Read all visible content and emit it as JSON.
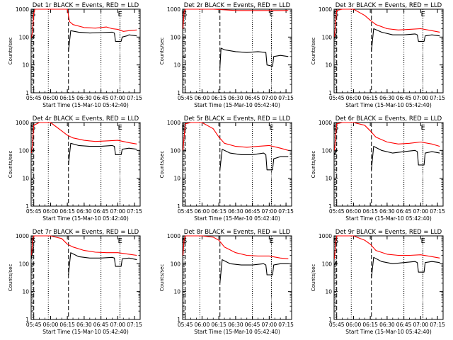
{
  "chart_data": [
    {
      "type": "line",
      "title": "Det 1r BLACK = Events, RED = LLD",
      "ylabel": "Counts/sec",
      "xlabel": "Start Time (15-Mar-10 05:42:40)",
      "x_ticks": [
        "05:45",
        "06:00",
        "06:15",
        "06:30",
        "06:45",
        "07:00",
        "07:15"
      ],
      "y_ticks": [
        "1",
        "10",
        "100",
        "1000"
      ],
      "ylim": [
        1,
        1000
      ],
      "yscale": "log",
      "markers": [
        "E",
        "S",
        "E"
      ],
      "series": [
        {
          "color": "#ff0000",
          "x": [
            "05:43",
            "05:44",
            "05:45",
            "05:46",
            "05:47",
            "05:50",
            "05:55",
            "06:00",
            "06:05",
            "06:10",
            "06:15",
            "06:17",
            "06:20",
            "06:30",
            "06:40",
            "06:50",
            "06:55",
            "07:00",
            "07:05",
            "07:10",
            "07:17"
          ],
          "y": [
            90,
            180,
            700,
            1000,
            1000,
            1000,
            1000,
            1000,
            1000,
            1000,
            1000,
            360,
            280,
            220,
            210,
            230,
            200,
            190,
            160,
            170,
            180
          ]
        },
        {
          "color": "#000000",
          "x": [
            "05:43",
            "05:44",
            "05:45",
            "05:46",
            "06:15",
            "06:16",
            "06:18",
            "06:25",
            "06:35",
            "06:45",
            "06:55",
            "06:57",
            "06:58",
            "07:03",
            "07:04",
            "07:08",
            "07:10",
            "07:17"
          ],
          "y": [
            90,
            100,
            110,
            120,
            null,
            30,
            170,
            150,
            140,
            145,
            150,
            140,
            70,
            70,
            100,
            110,
            120,
            110
          ]
        }
      ]
    },
    {
      "type": "line",
      "title": "Det 2r BLACK = Events, RED = LLD",
      "ylabel": "Counts/sec",
      "xlabel": "Start Time (15-Mar-10 05:42:40)",
      "x_ticks": [
        "05:45",
        "06:00",
        "06:15",
        "06:30",
        "06:45",
        "07:00",
        "07:15"
      ],
      "y_ticks": [
        "1",
        "10",
        "100",
        "1000"
      ],
      "ylim": [
        1,
        1000
      ],
      "yscale": "log",
      "markers": [
        "E",
        "S",
        "E"
      ],
      "series": [
        {
          "color": "#ff0000",
          "x": [
            "05:43",
            "05:44",
            "05:45",
            "06:10",
            "06:30",
            "06:50",
            "07:10",
            "07:17"
          ],
          "y": [
            200,
            800,
            1000,
            1000,
            900,
            900,
            900,
            900
          ]
        },
        {
          "color": "#000000",
          "x": [
            "05:43",
            "05:44",
            "05:45",
            "06:15",
            "06:16",
            "06:17",
            "06:20",
            "06:30",
            "06:40",
            "06:50",
            "06:57",
            "06:58",
            "07:03",
            "07:04",
            "07:10",
            "07:17"
          ],
          "y": [
            20,
            18,
            20,
            null,
            8,
            40,
            35,
            30,
            28,
            30,
            28,
            10,
            9,
            20,
            22,
            20
          ]
        }
      ]
    },
    {
      "type": "line",
      "title": "Det 3r BLACK = Events, RED = LLD",
      "ylabel": "Counts/sec",
      "xlabel": "Start Time (15-Mar-10 05:42:40)",
      "x_ticks": [
        "05:45",
        "06:00",
        "06:15",
        "06:30",
        "06:45",
        "07:00",
        "07:15"
      ],
      "y_ticks": [
        "1",
        "10",
        "100",
        "1000"
      ],
      "ylim": [
        1,
        1000
      ],
      "yscale": "log",
      "markers": [
        "E",
        "S",
        "E"
      ],
      "series": [
        {
          "color": "#ff0000",
          "x": [
            "05:43",
            "05:44",
            "05:45",
            "05:50",
            "06:00",
            "06:10",
            "06:15",
            "06:20",
            "06:30",
            "06:40",
            "06:50",
            "07:00",
            "07:10",
            "07:17"
          ],
          "y": [
            100,
            300,
            900,
            1000,
            1000,
            600,
            400,
            280,
            200,
            180,
            190,
            200,
            170,
            150
          ]
        },
        {
          "color": "#000000",
          "x": [
            "05:43",
            "05:44",
            "05:45",
            "06:15",
            "06:16",
            "06:18",
            "06:25",
            "06:35",
            "06:45",
            "06:55",
            "06:57",
            "06:58",
            "07:03",
            "07:04",
            "07:10",
            "07:17"
          ],
          "y": [
            90,
            120,
            150,
            null,
            30,
            200,
            150,
            120,
            120,
            130,
            120,
            70,
            70,
            110,
            120,
            110
          ]
        }
      ]
    },
    {
      "type": "line",
      "title": "Det 4r BLACK = Events, RED = LLD",
      "ylabel": "Counts/sec",
      "xlabel": "Start Time (15-Mar-10 05:42:40)",
      "x_ticks": [
        "05:45",
        "06:00",
        "06:15",
        "06:30",
        "06:45",
        "07:00",
        "07:15"
      ],
      "y_ticks": [
        "1",
        "10",
        "100",
        "1000"
      ],
      "ylim": [
        1,
        1000
      ],
      "yscale": "log",
      "markers": [
        "E",
        "S",
        "E"
      ],
      "series": [
        {
          "color": "#ff0000",
          "x": [
            "05:43",
            "05:44",
            "05:45",
            "05:50",
            "06:00",
            "06:10",
            "06:15",
            "06:20",
            "06:30",
            "06:40",
            "06:50",
            "07:00",
            "07:10",
            "07:17"
          ],
          "y": [
            80,
            200,
            800,
            1000,
            1000,
            500,
            350,
            280,
            230,
            210,
            220,
            230,
            190,
            170
          ]
        },
        {
          "color": "#000000",
          "x": [
            "05:43",
            "05:44",
            "05:45",
            "06:15",
            "06:16",
            "06:18",
            "06:25",
            "06:35",
            "06:45",
            "06:55",
            "06:57",
            "06:58",
            "07:03",
            "07:04",
            "07:10",
            "07:17"
          ],
          "y": [
            90,
            100,
            110,
            null,
            30,
            180,
            150,
            140,
            140,
            150,
            140,
            70,
            70,
            110,
            120,
            110
          ]
        }
      ]
    },
    {
      "type": "line",
      "title": "Det 5r BLACK = Events, RED = LLD",
      "ylabel": "Counts/sec",
      "xlabel": "Start Time (15-Mar-10 05:42:40)",
      "x_ticks": [
        "05:45",
        "06:00",
        "06:15",
        "06:30",
        "06:45",
        "07:00",
        "07:15"
      ],
      "y_ticks": [
        "1",
        "10",
        "100",
        "1000"
      ],
      "ylim": [
        1,
        1000
      ],
      "yscale": "log",
      "markers": [
        "E",
        "S",
        "E"
      ],
      "series": [
        {
          "color": "#ff0000",
          "x": [
            "05:43",
            "05:44",
            "05:45",
            "05:50",
            "06:00",
            "06:10",
            "06:15",
            "06:20",
            "06:30",
            "06:40",
            "06:50",
            "07:00",
            "07:10",
            "07:17"
          ],
          "y": [
            100,
            300,
            900,
            1000,
            1000,
            600,
            300,
            180,
            140,
            130,
            140,
            150,
            120,
            100
          ]
        },
        {
          "color": "#000000",
          "x": [
            "05:43",
            "05:44",
            "05:45",
            "06:15",
            "06:16",
            "06:18",
            "06:25",
            "06:35",
            "06:45",
            "06:55",
            "06:57",
            "06:58",
            "07:03",
            "07:04",
            "07:10",
            "07:17"
          ],
          "y": [
            1.5,
            1.5,
            1.5,
            null,
            20,
            110,
            80,
            70,
            70,
            80,
            70,
            20,
            20,
            50,
            60,
            60
          ]
        }
      ]
    },
    {
      "type": "line",
      "title": "Det 6r BLACK = Events, RED = LLD",
      "ylabel": "Counts/sec",
      "xlabel": "Start Time (15-Mar-10 05:42:40)",
      "x_ticks": [
        "05:45",
        "06:00",
        "06:15",
        "06:30",
        "06:45",
        "07:00",
        "07:15"
      ],
      "y_ticks": [
        "1",
        "10",
        "100",
        "1000"
      ],
      "ylim": [
        1,
        1000
      ],
      "yscale": "log",
      "markers": [
        "E",
        "S",
        "E"
      ],
      "series": [
        {
          "color": "#ff0000",
          "x": [
            "05:43",
            "05:44",
            "05:45",
            "05:50",
            "06:00",
            "06:10",
            "06:15",
            "06:20",
            "06:30",
            "06:40",
            "06:50",
            "07:00",
            "07:10",
            "07:17"
          ],
          "y": [
            100,
            300,
            900,
            1000,
            1000,
            800,
            500,
            300,
            200,
            170,
            180,
            200,
            170,
            140
          ]
        },
        {
          "color": "#000000",
          "x": [
            "05:43",
            "05:44",
            "05:45",
            "06:15",
            "06:16",
            "06:18",
            "06:25",
            "06:35",
            "06:45",
            "06:55",
            "06:57",
            "06:58",
            "07:03",
            "07:04",
            "07:10",
            "07:17"
          ],
          "y": [
            70,
            90,
            110,
            null,
            20,
            140,
            100,
            80,
            90,
            100,
            90,
            30,
            30,
            80,
            90,
            80
          ]
        }
      ]
    },
    {
      "type": "line",
      "title": "Det 7r BLACK = Events, RED = LLD",
      "ylabel": "Counts/sec",
      "xlabel": "Start Time (15-Mar-10 05:42:40)",
      "x_ticks": [
        "05:45",
        "06:00",
        "06:15",
        "06:30",
        "06:45",
        "07:00",
        "07:15"
      ],
      "y_ticks": [
        "1",
        "10",
        "100",
        "1000"
      ],
      "ylim": [
        1,
        1000
      ],
      "yscale": "log",
      "markers": [
        "E",
        "S",
        "E"
      ],
      "series": [
        {
          "color": "#ff0000",
          "x": [
            "05:43",
            "05:44",
            "05:45",
            "05:50",
            "06:00",
            "06:10",
            "06:15",
            "06:20",
            "06:30",
            "06:40",
            "06:50",
            "07:00",
            "07:10",
            "07:17"
          ],
          "y": [
            200,
            700,
            1000,
            1000,
            1000,
            800,
            500,
            400,
            300,
            260,
            250,
            250,
            220,
            200
          ]
        },
        {
          "color": "#000000",
          "x": [
            "05:43",
            "05:44",
            "05:45",
            "06:15",
            "06:16",
            "06:18",
            "06:25",
            "06:35",
            "06:45",
            "06:55",
            "06:57",
            "06:58",
            "07:03",
            "07:04",
            "07:10",
            "07:17"
          ],
          "y": [
            150,
            300,
            400,
            null,
            40,
            250,
            180,
            160,
            160,
            170,
            160,
            80,
            80,
            150,
            160,
            140
          ]
        }
      ]
    },
    {
      "type": "line",
      "title": "Det 8r BLACK = Events, RED = LLD",
      "ylabel": "Counts/sec",
      "xlabel": "Start Time (15-Mar-10 05:42:40)",
      "x_ticks": [
        "05:45",
        "06:00",
        "06:15",
        "06:30",
        "06:45",
        "07:00",
        "07:15"
      ],
      "y_ticks": [
        "1",
        "10",
        "100",
        "1000"
      ],
      "ylim": [
        1,
        1000
      ],
      "yscale": "log",
      "markers": [
        "E",
        "S",
        "E"
      ],
      "series": [
        {
          "color": "#ff0000",
          "x": [
            "05:43",
            "05:44",
            "05:45",
            "05:50",
            "06:00",
            "06:10",
            "06:15",
            "06:20",
            "06:30",
            "06:40",
            "06:50",
            "07:00",
            "07:10",
            "07:17"
          ],
          "y": [
            200,
            700,
            1000,
            1000,
            1000,
            900,
            700,
            400,
            250,
            200,
            190,
            190,
            160,
            150
          ]
        },
        {
          "color": "#000000",
          "x": [
            "05:43",
            "05:44",
            "05:45",
            "06:15",
            "06:16",
            "06:18",
            "06:25",
            "06:35",
            "06:45",
            "06:55",
            "06:57",
            "06:58",
            "07:03",
            "07:04",
            "07:10",
            "07:17"
          ],
          "y": [
            1.5,
            1.5,
            1.5,
            null,
            20,
            140,
            100,
            90,
            90,
            100,
            90,
            40,
            40,
            90,
            100,
            100
          ]
        }
      ]
    },
    {
      "type": "line",
      "title": "Det 9r BLACK = Events, RED = LLD",
      "ylabel": "Counts/sec",
      "xlabel": "Start Time (15-Mar-10 05:42:40)",
      "x_ticks": [
        "05:45",
        "06:00",
        "06:15",
        "06:30",
        "06:45",
        "07:00",
        "07:15"
      ],
      "y_ticks": [
        "1",
        "10",
        "100",
        "1000"
      ],
      "ylim": [
        1,
        1000
      ],
      "yscale": "log",
      "markers": [
        "E",
        "S",
        "E"
      ],
      "series": [
        {
          "color": "#ff0000",
          "x": [
            "05:43",
            "05:44",
            "05:45",
            "05:50",
            "06:00",
            "06:10",
            "06:15",
            "06:20",
            "06:30",
            "06:40",
            "06:50",
            "07:00",
            "07:10",
            "07:17"
          ],
          "y": [
            150,
            500,
            1000,
            1000,
            1000,
            700,
            500,
            300,
            220,
            200,
            200,
            210,
            180,
            160
          ]
        },
        {
          "color": "#000000",
          "x": [
            "05:43",
            "05:44",
            "05:45",
            "06:15",
            "06:16",
            "06:18",
            "06:25",
            "06:35",
            "06:45",
            "06:55",
            "06:57",
            "06:58",
            "07:03",
            "07:04",
            "07:10",
            "07:17"
          ],
          "y": [
            90,
            110,
            130,
            null,
            30,
            170,
            120,
            100,
            110,
            120,
            110,
            50,
            50,
            110,
            120,
            110
          ]
        }
      ]
    }
  ]
}
